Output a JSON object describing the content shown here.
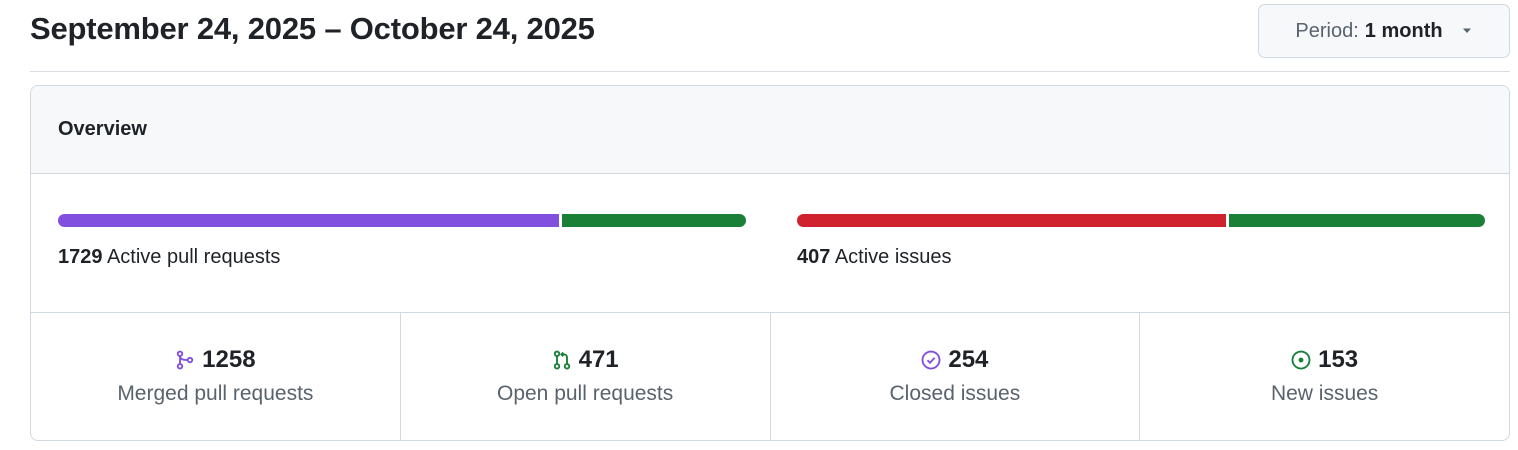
{
  "header": {
    "title": "September 24, 2025 – October 24, 2025",
    "period_prefix": "Period:",
    "period_value": "1 month"
  },
  "overview": {
    "title": "Overview",
    "pull_requests_bar": {
      "count": "1729",
      "label": "Active pull requests",
      "segments": [
        {
          "name": "merged",
          "fraction": 0.7276,
          "color": "#8250df"
        },
        {
          "name": "open",
          "fraction": 0.2724,
          "color": "#1a7f37"
        }
      ]
    },
    "issues_bar": {
      "count": "407",
      "label": "Active issues",
      "segments": [
        {
          "name": "closed",
          "fraction": 0.6241,
          "color": "#cf222e"
        },
        {
          "name": "new",
          "fraction": 0.3759,
          "color": "#1a7f37"
        }
      ]
    },
    "stats": [
      {
        "value": "1258",
        "label": "Merged pull requests",
        "icon": "git-merge-icon",
        "color": "#8250df"
      },
      {
        "value": "471",
        "label": "Open pull requests",
        "icon": "git-pull-request-icon",
        "color": "#1a7f37"
      },
      {
        "value": "254",
        "label": "Closed issues",
        "icon": "issue-closed-icon",
        "color": "#8250df"
      },
      {
        "value": "153",
        "label": "New issues",
        "icon": "issue-opened-icon",
        "color": "#1a7f37"
      }
    ]
  }
}
